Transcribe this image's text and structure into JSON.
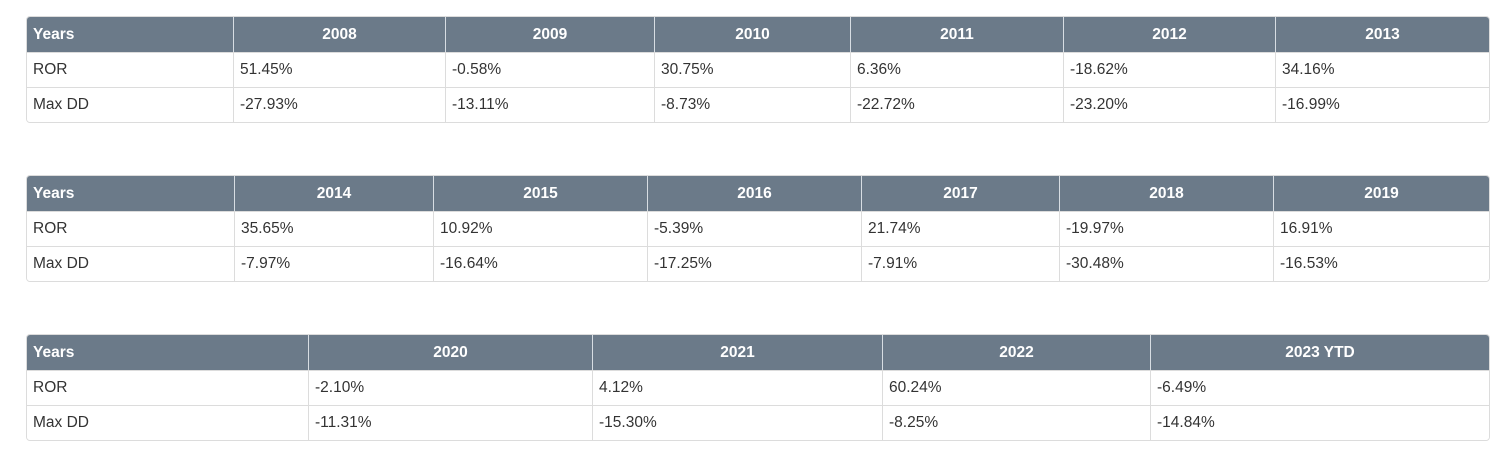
{
  "tables": [
    {
      "label_header": "Years",
      "years": [
        "2008",
        "2009",
        "2010",
        "2011",
        "2012",
        "2013"
      ],
      "rows": [
        {
          "label": "ROR",
          "values": [
            "51.45%",
            "-0.58%",
            "30.75%",
            "6.36%",
            "-18.62%",
            "34.16%"
          ]
        },
        {
          "label": "Max DD",
          "values": [
            "-27.93%",
            "-13.11%",
            "-8.73%",
            "-22.72%",
            "-23.20%",
            "-16.99%"
          ]
        }
      ]
    },
    {
      "label_header": "Years",
      "years": [
        "2014",
        "2015",
        "2016",
        "2017",
        "2018",
        "2019"
      ],
      "rows": [
        {
          "label": "ROR",
          "values": [
            "35.65%",
            "10.92%",
            "-5.39%",
            "21.74%",
            "-19.97%",
            "16.91%"
          ]
        },
        {
          "label": "Max DD",
          "values": [
            "-7.97%",
            "-16.64%",
            "-17.25%",
            "-7.91%",
            "-30.48%",
            "-16.53%"
          ]
        }
      ]
    },
    {
      "label_header": "Years",
      "years": [
        "2020",
        "2021",
        "2022",
        "2023 YTD"
      ],
      "rows": [
        {
          "label": "ROR",
          "values": [
            "-2.10%",
            "4.12%",
            "60.24%",
            "-6.49%"
          ]
        },
        {
          "label": "Max DD",
          "values": [
            "-11.31%",
            "-15.30%",
            "-8.25%",
            "-14.84%"
          ]
        }
      ]
    }
  ]
}
